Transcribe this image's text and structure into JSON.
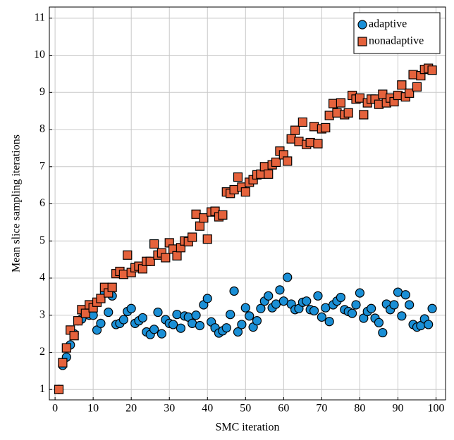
{
  "chart_data": {
    "type": "scatter",
    "x_label": "SMC iteration",
    "y_label": "Mean slice sampling iterations",
    "x": [
      1,
      2,
      3,
      4,
      5,
      6,
      7,
      8,
      9,
      10,
      11,
      12,
      13,
      14,
      15,
      16,
      17,
      18,
      19,
      20,
      21,
      22,
      23,
      24,
      25,
      26,
      27,
      28,
      29,
      30,
      31,
      32,
      33,
      34,
      35,
      36,
      37,
      38,
      39,
      40,
      41,
      42,
      43,
      44,
      45,
      46,
      47,
      48,
      49,
      50,
      51,
      52,
      53,
      54,
      55,
      56,
      57,
      58,
      59,
      60,
      61,
      62,
      63,
      64,
      65,
      66,
      67,
      68,
      69,
      70,
      71,
      72,
      73,
      74,
      75,
      76,
      77,
      78,
      79,
      80,
      81,
      82,
      83,
      84,
      85,
      86,
      87,
      88,
      89,
      90,
      91,
      92,
      93,
      94,
      95,
      96,
      97,
      98,
      99
    ],
    "series": [
      {
        "name": "adaptive",
        "color": "#1a8fd6",
        "marker": "circle",
        "values": [
          1,
          1.65,
          1.87,
          2.2,
          2.5,
          2.85,
          2.9,
          3.05,
          3.0,
          3.0,
          2.6,
          2.78,
          3.6,
          3.08,
          3.52,
          2.75,
          2.78,
          2.88,
          3.1,
          3.18,
          2.78,
          2.85,
          2.93,
          2.55,
          2.48,
          2.62,
          3.08,
          2.5,
          2.88,
          2.78,
          2.75,
          3.02,
          2.65,
          2.98,
          2.95,
          2.78,
          3.0,
          2.72,
          3.28,
          3.45,
          2.82,
          2.66,
          2.52,
          2.58,
          2.66,
          3.02,
          3.65,
          2.55,
          2.75,
          3.2,
          2.98,
          2.68,
          2.85,
          3.18,
          3.38,
          3.52,
          3.2,
          3.3,
          3.68,
          3.38,
          4.02,
          3.3,
          3.15,
          3.18,
          3.35,
          3.38,
          3.15,
          3.12,
          3.52,
          2.95,
          3.2,
          2.83,
          3.28,
          3.38,
          3.48,
          3.15,
          3.1,
          3.05,
          3.28,
          3.6,
          2.92,
          3.1,
          3.18,
          2.92,
          2.8,
          2.53,
          3.3,
          3.15,
          3.28,
          3.62,
          2.98,
          3.55,
          3.28,
          2.75,
          2.68,
          2.72,
          2.9,
          2.75,
          3.18
        ]
      },
      {
        "name": "nonadaptive",
        "color": "#e5623c",
        "marker": "square",
        "values": [
          1.0,
          1.72,
          2.12,
          2.6,
          2.45,
          2.85,
          3.15,
          3.05,
          3.28,
          3.2,
          3.35,
          3.45,
          3.75,
          3.6,
          3.75,
          4.12,
          4.18,
          4.1,
          4.62,
          4.15,
          4.28,
          4.32,
          4.25,
          4.45,
          4.45,
          4.92,
          4.62,
          4.68,
          4.55,
          4.95,
          4.78,
          4.6,
          4.82,
          5.0,
          4.98,
          5.1,
          5.72,
          5.4,
          5.62,
          5.05,
          5.78,
          5.8,
          5.65,
          5.7,
          6.32,
          6.28,
          6.38,
          6.72,
          6.45,
          6.32,
          6.58,
          6.65,
          6.78,
          6.8,
          7.0,
          6.8,
          7.05,
          7.12,
          7.42,
          7.32,
          7.15,
          7.75,
          7.98,
          7.68,
          8.2,
          7.6,
          7.65,
          8.08,
          7.62,
          8.02,
          8.05,
          8.38,
          8.7,
          8.45,
          8.72,
          8.4,
          8.45,
          8.92,
          8.82,
          8.85,
          8.4,
          8.72,
          8.82,
          8.82,
          8.68,
          8.95,
          8.72,
          8.85,
          8.75,
          8.92,
          9.2,
          8.88,
          8.98,
          9.48,
          9.15,
          9.45,
          9.62,
          9.65,
          9.6
        ]
      }
    ],
    "xlim": [
      -1.5,
      102.5
    ],
    "ylim": [
      0.72,
      11.3
    ],
    "xticks": [
      0,
      10,
      20,
      30,
      40,
      50,
      60,
      70,
      80,
      90,
      100
    ],
    "yticks": [
      1,
      2,
      3,
      4,
      5,
      6,
      7,
      8,
      9,
      10,
      11
    ],
    "grid": true,
    "legend": "upper-right"
  }
}
